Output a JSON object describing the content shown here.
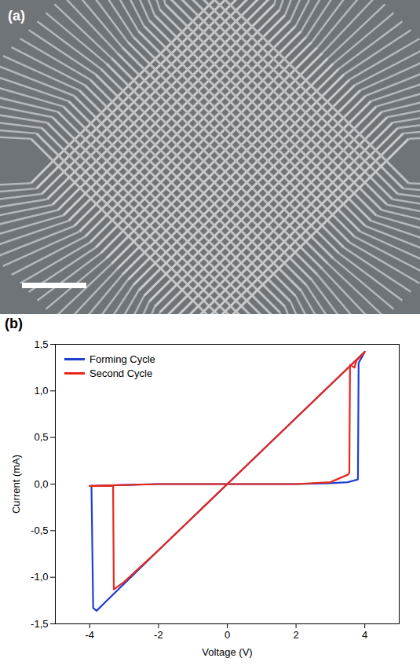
{
  "image_panel": {
    "title": "(a)"
  },
  "chart_data": {
    "type": "line",
    "title": "(b)",
    "x_label": "Voltage (V)",
    "y_label": "Current (mA)",
    "xlim": [
      -5,
      5
    ],
    "xticks": [
      -4,
      -2,
      0,
      2,
      4
    ],
    "ylim": [
      -1.5,
      1.5
    ],
    "yticks": [
      {
        "value": -1.5,
        "label": "-1,5"
      },
      {
        "value": -1.0,
        "label": "-1,0"
      },
      {
        "value": -0.5,
        "label": "-0,5"
      },
      {
        "value": 0.0,
        "label": "0,0"
      },
      {
        "value": 0.5,
        "label": "0,5"
      },
      {
        "value": 1.0,
        "label": "1,0"
      },
      {
        "value": 1.5,
        "label": "1,5"
      }
    ],
    "legend": "top-left",
    "series": [
      {
        "name": "Forming Cycle",
        "color": "#1f3fd0",
        "x": [
          0,
          1,
          2,
          3,
          3.5,
          3.8,
          3.82,
          4,
          2,
          0,
          -2,
          -3.5,
          -3.8,
          -3.9,
          -3.95,
          -4,
          -3,
          -2,
          0
        ],
        "values": [
          0,
          0,
          0,
          0.01,
          0.02,
          0.05,
          1.3,
          1.42,
          0.71,
          0,
          -0.71,
          -1.25,
          -1.36,
          -1.33,
          -0.02,
          -0.02,
          -0.01,
          0,
          0
        ]
      },
      {
        "name": "Second Cycle",
        "color": "#e8281e",
        "x": [
          0,
          2,
          3,
          3.5,
          3.55,
          3.57,
          3.7,
          3.75,
          4,
          2,
          0,
          -2,
          -3,
          -3.3,
          -3.32,
          -4,
          -2,
          0
        ],
        "values": [
          0,
          0,
          0.02,
          0.1,
          0.12,
          1.28,
          1.25,
          1.32,
          1.42,
          0.71,
          0,
          -0.71,
          -1.05,
          -1.13,
          -0.02,
          -0.02,
          0,
          0
        ]
      }
    ]
  }
}
